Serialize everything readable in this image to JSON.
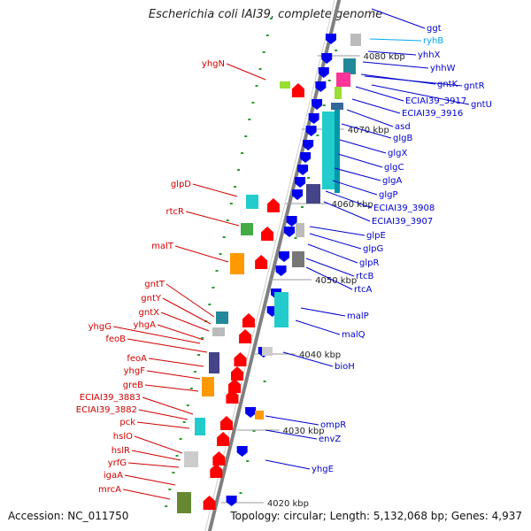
{
  "title": "Escherichia coli IAI39, complete genome",
  "footer": {
    "accession": "Accession: NC_011750",
    "topology": "Topology: circular; Length: 5,132,068 bp; Genes: 4,937"
  },
  "colors": {
    "backbone": "#808080",
    "left_label": "#d00000",
    "right_label": "#0000cc",
    "rna_label": "#00aaee",
    "tick": "#2a9d2a",
    "left_arrow": "#ff0000",
    "right_arrow": "#0000ee",
    "teal": "#22cccc",
    "navy": "#444488",
    "orange": "#ff9900",
    "gray": "#777777"
  },
  "scale_labels": [
    "4080 kbp",
    "4070 kbp",
    "4060 kbp",
    "4050 kbp",
    "4040 kbp",
    "4030 kbp",
    "4020 kbp"
  ],
  "left_genes": [
    "yhgN",
    "glpD",
    "rtcR",
    "malT",
    "gntT",
    "gntY",
    "gntX",
    "yhgG",
    "yhgA",
    "feoB",
    "feoA",
    "yhgF",
    "greB",
    "ECIAI39_3883",
    "ECIAI39_3882",
    "pck",
    "hslO",
    "hslR",
    "yrfG",
    "igaA",
    "mrcA"
  ],
  "right_genes": [
    "ggt",
    "ryhB",
    "yhhX",
    "yhhW",
    "gntR",
    "gntK",
    "gntU",
    "ECIAI39_3917",
    "ECIAI39_3916",
    "asd",
    "glgB",
    "glgX",
    "glgC",
    "glgA",
    "glgP",
    "ECIAI39_3908",
    "ECIAI39_3907",
    "glpE",
    "glpG",
    "glpR",
    "rtcB",
    "rtcA",
    "malP",
    "malQ",
    "bioH",
    "ompR",
    "envZ",
    "yhgE"
  ],
  "rna_genes": [
    "ryhB"
  ]
}
